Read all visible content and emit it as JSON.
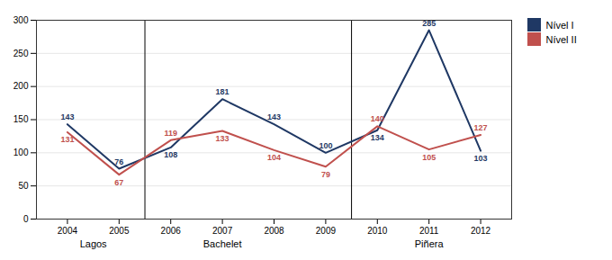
{
  "chart_data": {
    "type": "line",
    "x": [
      2004,
      2005,
      2006,
      2007,
      2008,
      2009,
      2010,
      2011,
      2012
    ],
    "xlim": [
      2003.4,
      2012.6
    ],
    "xticks": [
      2004,
      2005,
      2006,
      2007,
      2008,
      2009,
      2010,
      2011,
      2012
    ],
    "ylim": [
      0,
      300
    ],
    "yticks": [
      0,
      50,
      100,
      150,
      200,
      250,
      300
    ],
    "series": [
      {
        "name": "Nível I",
        "color": "#1F3864",
        "values": [
          143,
          76,
          108,
          181,
          143,
          100,
          134,
          285,
          103
        ]
      },
      {
        "name": "Nível II",
        "color": "#C0504D",
        "values": [
          131,
          67,
          119,
          133,
          104,
          79,
          140,
          105,
          127
        ]
      }
    ],
    "data_labels": true,
    "grid": true,
    "legend": "right",
    "annotations": [
      {
        "text": "Lagos",
        "x": 2004.5
      },
      {
        "text": "Bachelet",
        "x": 2007.0
      },
      {
        "text": "Piñera",
        "x": 2011.0
      }
    ],
    "vlines": [
      2005.5,
      2009.5
    ]
  }
}
